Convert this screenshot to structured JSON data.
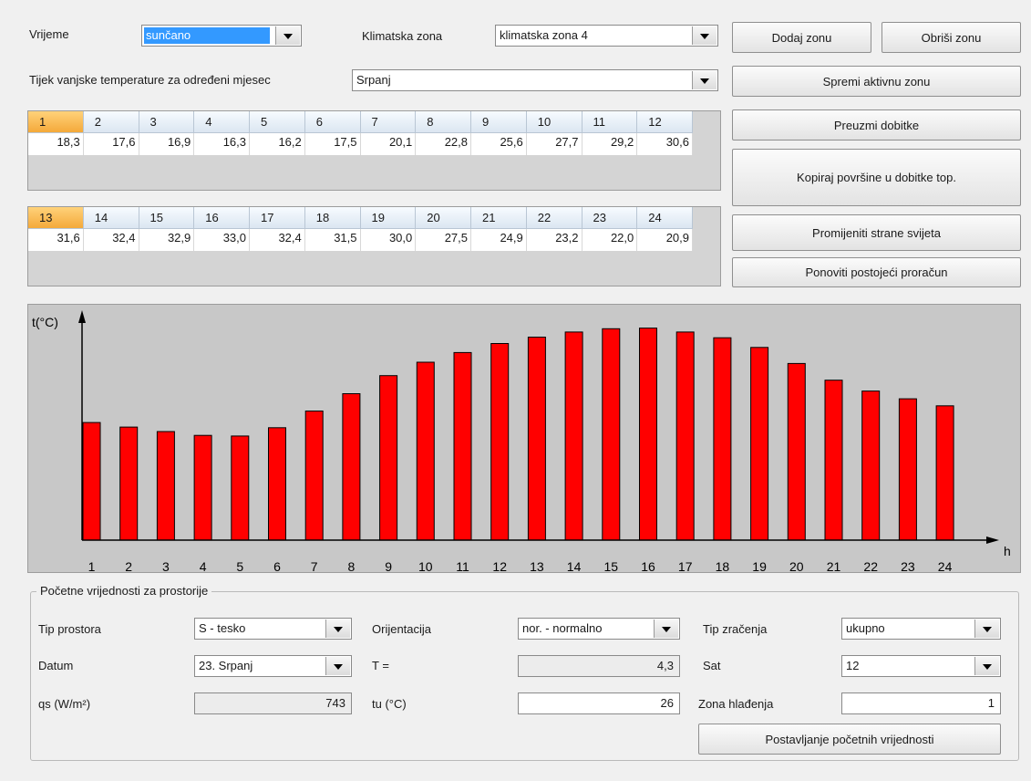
{
  "top": {
    "vrijeme_label": "Vrijeme",
    "vrijeme_value": "sunčano",
    "klimatska_label": "Klimatska zona",
    "klimatska_value": "klimatska zona 4",
    "tijek_label": "Tijek vanjske temperature za određeni mjesec",
    "mjesec_value": "Srpanj"
  },
  "buttons": {
    "dodaj_zonu": "Dodaj zonu",
    "obrisi_zonu": "Obriši zonu",
    "spremi": "Spremi aktivnu zonu",
    "preuzmi": "Preuzmi dobitke",
    "kopiraj": "Kopiraj površine u dobitke top.",
    "promijeniti": "Promijeniti strane svijeta",
    "ponoviti": "Ponoviti postojeći proračun",
    "postavljanje": "Postavljanje početnih vrijednosti"
  },
  "hours_table_1": {
    "headers": [
      "1",
      "2",
      "3",
      "4",
      "5",
      "6",
      "7",
      "8",
      "9",
      "10",
      "11",
      "12"
    ],
    "values": [
      "18,3",
      "17,6",
      "16,9",
      "16,3",
      "16,2",
      "17,5",
      "20,1",
      "22,8",
      "25,6",
      "27,7",
      "29,2",
      "30,6"
    ]
  },
  "hours_table_2": {
    "headers": [
      "13",
      "14",
      "15",
      "16",
      "17",
      "18",
      "19",
      "20",
      "21",
      "22",
      "23",
      "24"
    ],
    "values": [
      "31,6",
      "32,4",
      "32,9",
      "33,0",
      "32,4",
      "31,5",
      "30,0",
      "27,5",
      "24,9",
      "23,2",
      "22,0",
      "20,9"
    ]
  },
  "chart_data": {
    "type": "bar",
    "title": "",
    "ylabel": "t(°C)",
    "xlabel": "h",
    "categories": [
      "1",
      "2",
      "3",
      "4",
      "5",
      "6",
      "7",
      "8",
      "9",
      "10",
      "11",
      "12",
      "13",
      "14",
      "15",
      "16",
      "17",
      "18",
      "19",
      "20",
      "21",
      "22",
      "23",
      "24"
    ],
    "values": [
      18.3,
      17.6,
      16.9,
      16.3,
      16.2,
      17.5,
      20.1,
      22.8,
      25.6,
      27.7,
      29.2,
      30.6,
      31.6,
      32.4,
      32.9,
      33.0,
      32.4,
      31.5,
      30.0,
      27.5,
      24.9,
      23.2,
      22.0,
      20.9
    ],
    "ylim": [
      0,
      33.8
    ],
    "bar_color": "#ff0000",
    "background_color": "#c8c8c8",
    "grid": false
  },
  "initial": {
    "group_title": "Početne vrijednosti za prostorije",
    "tip_prostora_label": "Tip prostora",
    "tip_prostora_value": "S - tesko",
    "orijentacija_label": "Orijentacija",
    "orijentacija_value": "nor. - normalno",
    "tip_zracenja_label": "Tip zračenja",
    "tip_zracenja_value": "ukupno",
    "datum_label": "Datum",
    "datum_value": "23. Srpanj",
    "t_label": "T =",
    "t_value": "4,3",
    "sat_label": "Sat",
    "sat_value": "12",
    "qs_label": "qs (W/m²)",
    "qs_value": "743",
    "tu_label": "tu (°C)",
    "tu_value": "26",
    "zona_label": "Zona hlađenja",
    "zona_value": "1"
  }
}
